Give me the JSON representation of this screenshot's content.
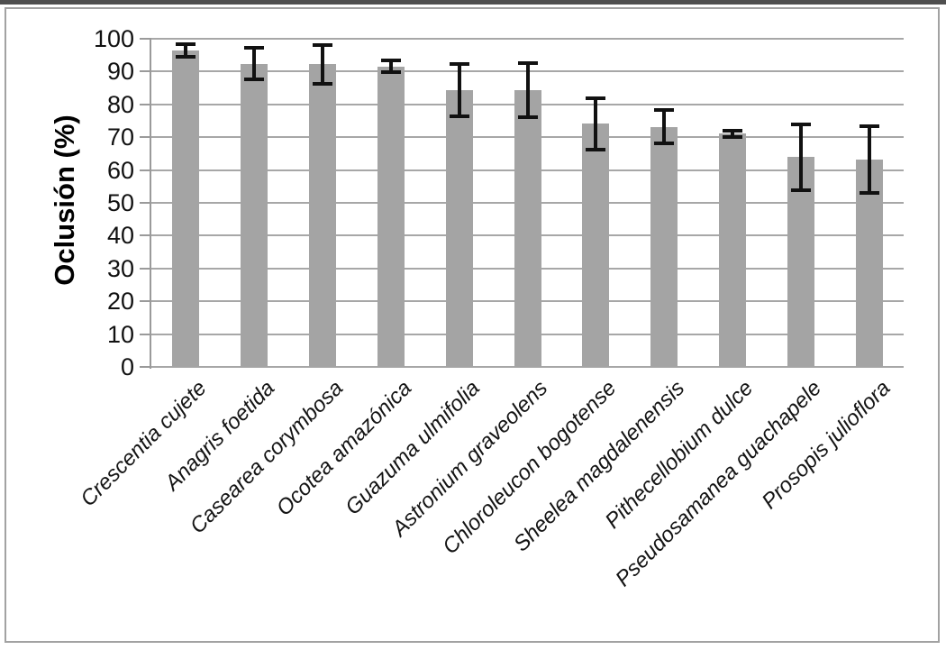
{
  "chart_data": {
    "type": "bar",
    "title": "",
    "xlabel": "",
    "ylabel": "Oclusión (%)",
    "ylim": [
      0,
      100
    ],
    "yticks": [
      0,
      10,
      20,
      30,
      40,
      50,
      60,
      70,
      80,
      90,
      100
    ],
    "grid": "horizontal",
    "legend": "none",
    "categories": [
      "Crescentia cujete",
      "Anagris foetida",
      "Casearea corymbosa",
      "Ocotea amazónica",
      "Guazuma ulmifolia",
      "Astronium graveolens",
      "Chloroleucon bogotense",
      "Sheelea magdalenensis",
      "Pithecellobium dulce",
      "Pseudosamanea guachapele",
      "Prosopis julioflora"
    ],
    "values": [
      96.4,
      92.4,
      92.2,
      91.5,
      84.4,
      84.4,
      74.1,
      73.2,
      71.1,
      63.9,
      63.1
    ],
    "errors": [
      1.9,
      4.8,
      6.0,
      1.8,
      8.0,
      8.2,
      7.9,
      5.0,
      1.0,
      10.0,
      10.2
    ],
    "colors": {
      "bar": "#a4a4a4",
      "gridline": "#a7a7a7",
      "axis": "#9a9a9a",
      "error_bar": "#111111",
      "frame_border": "#a2a2a2",
      "top_edge": "#4f4f4f"
    }
  }
}
